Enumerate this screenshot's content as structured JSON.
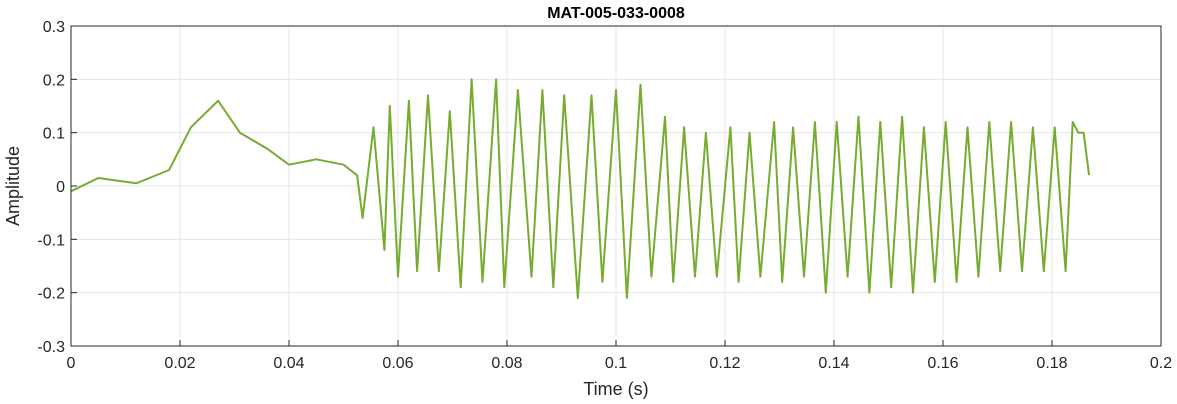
{
  "chart_data": {
    "type": "line",
    "title": "MAT-005-033-0008",
    "xlabel": "Time (s)",
    "ylabel": "Amplitude",
    "xlim": [
      0,
      0.2
    ],
    "ylim": [
      -0.3,
      0.3
    ],
    "xticks": [
      0,
      0.02,
      0.04,
      0.06,
      0.08,
      0.1,
      0.12,
      0.14,
      0.16,
      0.18,
      0.2
    ],
    "xtick_labels": [
      "0",
      "0.02",
      "0.04",
      "0.06",
      "0.08",
      "0.1",
      "0.12",
      "0.14",
      "0.16",
      "0.18",
      "0.2"
    ],
    "yticks": [
      -0.3,
      -0.2,
      -0.1,
      0,
      0.1,
      0.2,
      0.3
    ],
    "ytick_labels": [
      "-0.3",
      "-0.2",
      "-0.1",
      "0",
      "0.1",
      "0.2",
      "0.3"
    ],
    "grid": true,
    "line_color": "#77AC30",
    "series": [
      {
        "x": [
          0,
          0.005,
          0.012,
          0.018,
          0.022,
          0.027,
          0.031,
          0.036,
          0.04,
          0.045,
          0.05,
          0.0525,
          0.0535,
          0.0555,
          0.0575,
          0.0585,
          0.06,
          0.062,
          0.0635,
          0.0655,
          0.0675,
          0.0695,
          0.0715,
          0.0735,
          0.0755,
          0.078,
          0.0795,
          0.082,
          0.0845,
          0.0865,
          0.0885,
          0.0905,
          0.093,
          0.0955,
          0.0975,
          0.1,
          0.102,
          0.1045,
          0.1065,
          0.109,
          0.1105,
          0.1125,
          0.1145,
          0.1165,
          0.1185,
          0.121,
          0.1225,
          0.1245,
          0.1265,
          0.129,
          0.1305,
          0.1325,
          0.1345,
          0.1365,
          0.1385,
          0.1405,
          0.1425,
          0.1445,
          0.1465,
          0.1485,
          0.1505,
          0.1525,
          0.1545,
          0.1565,
          0.1585,
          0.1605,
          0.1625,
          0.1645,
          0.1665,
          0.1685,
          0.1705,
          0.1725,
          0.1745,
          0.1765,
          0.1785,
          0.1805,
          0.1825,
          0.1838,
          0.1848,
          0.1858,
          0.1868
        ],
        "y": [
          -0.01,
          0.015,
          0.005,
          0.03,
          0.11,
          0.16,
          0.1,
          0.07,
          0.04,
          0.05,
          0.04,
          0.02,
          -0.06,
          0.11,
          -0.12,
          0.15,
          -0.17,
          0.16,
          -0.16,
          0.17,
          -0.16,
          0.14,
          -0.19,
          0.2,
          -0.18,
          0.2,
          -0.19,
          0.18,
          -0.17,
          0.18,
          -0.19,
          0.17,
          -0.21,
          0.17,
          -0.18,
          0.18,
          -0.21,
          0.19,
          -0.17,
          0.13,
          -0.18,
          0.11,
          -0.17,
          0.1,
          -0.17,
          0.11,
          -0.18,
          0.1,
          -0.17,
          0.12,
          -0.18,
          0.11,
          -0.17,
          0.12,
          -0.2,
          0.12,
          -0.17,
          0.13,
          -0.2,
          0.12,
          -0.19,
          0.13,
          -0.2,
          0.11,
          -0.18,
          0.12,
          -0.18,
          0.11,
          -0.17,
          0.12,
          -0.16,
          0.12,
          -0.16,
          0.11,
          -0.16,
          0.11,
          -0.16,
          0.12,
          0.1,
          0.1,
          0.02
        ]
      }
    ]
  }
}
